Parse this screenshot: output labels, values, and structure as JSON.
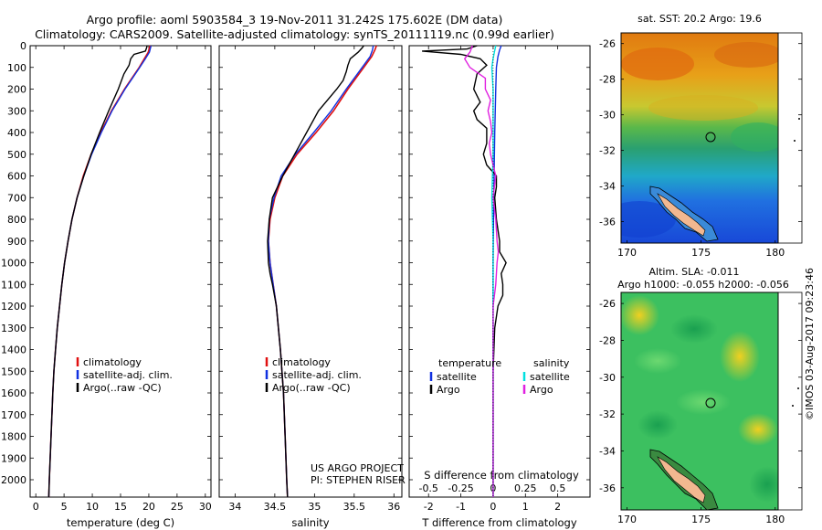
{
  "header": {
    "title_line1": "Argo profile: aoml 5903584_3 19-Nov-2011 31.242S 175.602E (DM data)",
    "title_line2": "Climatology: CARS2009. Satellite-adjusted climatology: synTS_20111119.nc (0.99d earlier)"
  },
  "maps": {
    "sst_title": "sat. SST: 20.2 Argo: 19.6",
    "sla_title_line1": "Altim. SLA: -0.011",
    "sla_title_line2": "Argo h1000: -0.055 h2000: -0.056",
    "lat_ticks": [
      -26,
      -28,
      -30,
      -32,
      -34,
      -36
    ],
    "lon_ticks": [
      170,
      175,
      180
    ],
    "lat_range": [
      -37.2,
      -25.4
    ],
    "lon_range": [
      169.6,
      180.2
    ],
    "argo_position": {
      "lat": -31.242,
      "lon": 175.602
    }
  },
  "credits": {
    "project_line1": "US ARGO PROJECT",
    "project_line2": "PI: STEPHEN RISER",
    "stamp": "©IMOS 03-Aug-2017 09:23:46"
  },
  "colors": {
    "climatology": "#e01010",
    "satellite": "#1030e0",
    "argo": "#000000",
    "sat_salinity": "#00e0e0",
    "argo_salinity": "#e020e0"
  },
  "chart_data": [
    {
      "type": "line",
      "xlabel": "temperature (deg C)",
      "ylabel": "",
      "xlim": [
        -1,
        31
      ],
      "ylim": [
        2080,
        0
      ],
      "xticks": [
        0,
        5,
        10,
        15,
        20,
        25,
        30
      ],
      "yticks": [
        0,
        100,
        200,
        300,
        400,
        500,
        600,
        700,
        800,
        900,
        1000,
        1100,
        1200,
        1300,
        1400,
        1500,
        1600,
        1700,
        1800,
        1900,
        2000
      ],
      "legend": [
        "climatology",
        "satellite-adj. clim.",
        "Argo(..raw -QC)"
      ],
      "series": [
        {
          "name": "climatology",
          "depth": [
            0,
            30,
            60,
            100,
            150,
            200,
            300,
            400,
            500,
            600,
            700,
            800,
            900,
            1000,
            1100,
            1200,
            1300,
            1400,
            1500,
            1600,
            1800,
            2000,
            2080
          ],
          "values": [
            20.2,
            19.9,
            19.2,
            18.3,
            17.0,
            15.7,
            13.4,
            11.5,
            9.8,
            8.4,
            7.3,
            6.4,
            5.7,
            5.1,
            4.6,
            4.2,
            3.8,
            3.5,
            3.2,
            3.0,
            2.7,
            2.4,
            2.3
          ]
        },
        {
          "name": "satellite-adj. clim.",
          "depth": [
            0,
            30,
            60,
            100,
            150,
            200,
            300,
            400,
            500,
            600,
            700,
            800,
            900,
            1000,
            1100,
            1200,
            1300,
            1400,
            1500,
            1600,
            1800,
            2000,
            2080
          ],
          "values": [
            20.4,
            20.1,
            19.4,
            18.4,
            17.1,
            15.8,
            13.5,
            11.6,
            9.9,
            8.5,
            7.3,
            6.4,
            5.7,
            5.1,
            4.6,
            4.2,
            3.8,
            3.5,
            3.2,
            3.0,
            2.7,
            2.4,
            2.3
          ]
        },
        {
          "name": "Argo(..raw -QC)",
          "depth": [
            0,
            10,
            25,
            40,
            60,
            90,
            130,
            200,
            300,
            400,
            500,
            600,
            700,
            800,
            900,
            1000,
            1100,
            1200,
            1300,
            1400,
            1500,
            1600,
            1800,
            2000,
            2080
          ],
          "values": [
            19.7,
            19.6,
            19.4,
            17.4,
            16.8,
            16.5,
            15.6,
            14.6,
            12.9,
            11.3,
            9.8,
            8.5,
            7.3,
            6.4,
            5.7,
            5.1,
            4.6,
            4.2,
            3.8,
            3.5,
            3.2,
            3.0,
            2.7,
            2.4,
            2.3
          ]
        }
      ]
    },
    {
      "type": "line",
      "xlabel": "salinity",
      "ylabel": "",
      "xlim": [
        33.8,
        36.1
      ],
      "ylim": [
        2080,
        0
      ],
      "xticks": [
        34,
        34.5,
        35,
        35.5,
        36
      ],
      "legend": [
        "climatology",
        "satellite-adj. clim.",
        "Argo(..raw -QC)"
      ],
      "series": [
        {
          "name": "climatology",
          "depth": [
            0,
            20,
            50,
            100,
            200,
            300,
            400,
            500,
            600,
            700,
            800,
            900,
            1000,
            1100,
            1200,
            1400,
            1600,
            1800,
            2000,
            2080
          ],
          "values": [
            35.78,
            35.76,
            35.72,
            35.62,
            35.42,
            35.24,
            35.02,
            34.78,
            34.6,
            34.5,
            34.44,
            34.42,
            34.44,
            34.48,
            34.52,
            34.57,
            34.61,
            34.63,
            34.65,
            34.66
          ]
        },
        {
          "name": "satellite-adj. clim.",
          "depth": [
            0,
            20,
            50,
            100,
            200,
            300,
            400,
            500,
            600,
            700,
            800,
            900,
            1000,
            1100,
            1200,
            1400,
            1600,
            1800,
            2000,
            2080
          ],
          "values": [
            35.74,
            35.73,
            35.7,
            35.6,
            35.4,
            35.21,
            34.99,
            34.76,
            34.58,
            34.49,
            34.43,
            34.42,
            34.44,
            34.48,
            34.52,
            34.57,
            34.61,
            34.63,
            34.65,
            34.66
          ]
        },
        {
          "name": "Argo(..raw -QC)",
          "depth": [
            0,
            10,
            30,
            60,
            90,
            120,
            160,
            200,
            300,
            400,
            500,
            600,
            700,
            800,
            900,
            1000,
            1050,
            1100,
            1200,
            1400,
            1600,
            1800,
            2000,
            2080
          ],
          "values": [
            35.62,
            35.6,
            35.55,
            35.45,
            35.42,
            35.4,
            35.36,
            35.28,
            35.05,
            34.9,
            34.75,
            34.6,
            34.47,
            34.43,
            34.41,
            34.42,
            34.44,
            34.47,
            34.52,
            34.57,
            34.61,
            34.63,
            34.65,
            34.66
          ]
        }
      ]
    },
    {
      "type": "line",
      "xlabel": "T difference from climatology",
      "upper_xlabel": "S difference from climatology",
      "xlim": [
        -2.6,
        3.0
      ],
      "ylim": [
        2080,
        0
      ],
      "xticks": [
        -2,
        -1,
        0,
        1,
        2
      ],
      "upper_xticks": [
        -0.5,
        -0.25,
        0,
        0.25,
        0.5
      ],
      "upper_xlim": [
        -0.65,
        0.75
      ],
      "legend": [
        "temperature",
        "satellite",
        "Argo",
        "salinity",
        "satellite",
        "Argo"
      ],
      "series": [
        {
          "name": "satellite",
          "variable": "temperature",
          "depth": [
            0,
            20,
            50,
            100,
            200,
            400,
            700,
            1000,
            2000,
            2080
          ],
          "values": [
            0.25,
            0.2,
            0.15,
            0.1,
            0.08,
            0.05,
            0.02,
            0.0,
            0.0,
            0.0
          ]
        },
        {
          "name": "Argo",
          "variable": "temperature",
          "depth": [
            0,
            15,
            25,
            40,
            60,
            90,
            130,
            200,
            260,
            300,
            340,
            380,
            450,
            500,
            550,
            600,
            650,
            700,
            800,
            900,
            950,
            1000,
            1050,
            1100,
            1150,
            1200,
            1300,
            1500,
            1800,
            2000,
            2080
          ],
          "values": [
            -0.5,
            -0.8,
            -2.2,
            -1.0,
            -0.4,
            -0.2,
            -0.5,
            -0.6,
            -0.4,
            -0.6,
            -0.5,
            -0.2,
            -0.2,
            -0.3,
            -0.2,
            0.1,
            0.1,
            0.05,
            0.1,
            0.2,
            0.2,
            0.4,
            0.25,
            0.3,
            0.3,
            0.15,
            0.05,
            0.0,
            0.0,
            0.0,
            0.0
          ]
        },
        {
          "name": "satellite",
          "variable": "salinity",
          "depth": [
            0,
            30,
            60,
            100,
            200,
            500,
            700,
            900,
            1000,
            1200,
            2000,
            2080
          ],
          "values": [
            0.02,
            0.01,
            0.0,
            -0.01,
            0.0,
            0.0,
            -0.01,
            0.0,
            0.0,
            0.0,
            0.0,
            0.0
          ]
        },
        {
          "name": "Argo",
          "variable": "salinity",
          "depth": [
            0,
            30,
            60,
            100,
            150,
            200,
            250,
            300,
            350,
            400,
            450,
            500,
            600,
            700,
            800,
            900,
            950,
            1000,
            1100,
            1200,
            2000,
            2080
          ],
          "values": [
            -0.16,
            -0.18,
            -0.22,
            -0.18,
            -0.06,
            -0.06,
            -0.02,
            -0.04,
            -0.02,
            -0.01,
            -0.03,
            -0.02,
            0.02,
            0.0,
            0.02,
            0.03,
            0.04,
            0.03,
            0.02,
            0.0,
            0.0,
            0.0
          ]
        }
      ]
    }
  ]
}
